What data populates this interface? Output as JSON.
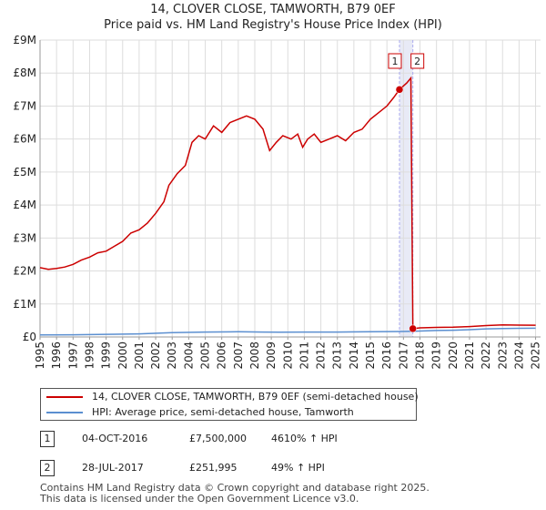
{
  "title_line1": "14, CLOVER CLOSE, TAMWORTH, B79 0EF",
  "title_line2": "Price paid vs. HM Land Registry's House Price Index (HPI)",
  "chart_data": {
    "type": "line",
    "title": "14, CLOVER CLOSE, TAMWORTH, B79 0EF — Price paid vs. HM Land Registry's House Price Index (HPI)",
    "xlabel": "",
    "ylabel": "",
    "xlim": [
      1995,
      2025.3
    ],
    "ylim": [
      0,
      9000000
    ],
    "x_ticks": [
      "1995",
      "1996",
      "1997",
      "1998",
      "1999",
      "2000",
      "2001",
      "2002",
      "2003",
      "2004",
      "2005",
      "2006",
      "2007",
      "2008",
      "2009",
      "2010",
      "2011",
      "2012",
      "2013",
      "2014",
      "2015",
      "2016",
      "2017",
      "2018",
      "2019",
      "2020",
      "2021",
      "2022",
      "2023",
      "2024",
      "2025"
    ],
    "y_ticks": [
      {
        "value": 0,
        "label": "£0"
      },
      {
        "value": 1000000,
        "label": "£1M"
      },
      {
        "value": 2000000,
        "label": "£2M"
      },
      {
        "value": 3000000,
        "label": "£3M"
      },
      {
        "value": 4000000,
        "label": "£4M"
      },
      {
        "value": 5000000,
        "label": "£5M"
      },
      {
        "value": 6000000,
        "label": "£6M"
      },
      {
        "value": 7000000,
        "label": "£7M"
      },
      {
        "value": 8000000,
        "label": "£8M"
      },
      {
        "value": 9000000,
        "label": "£9M"
      }
    ],
    "grid": true,
    "colors": {
      "property": "#cc0000",
      "hpi": "#5b8fd0",
      "marker_line": "#aaaaee",
      "highlight_band": "#e8eaf6"
    },
    "series": [
      {
        "name": "14, CLOVER CLOSE, TAMWORTH, B79 0EF (semi-detached house)",
        "color": "#cc0000",
        "points": [
          [
            1995.0,
            2100000
          ],
          [
            1995.5,
            2050000
          ],
          [
            1996.0,
            2080000
          ],
          [
            1996.5,
            2120000
          ],
          [
            1997.0,
            2200000
          ],
          [
            1997.5,
            2330000
          ],
          [
            1998.0,
            2420000
          ],
          [
            1998.5,
            2550000
          ],
          [
            1999.0,
            2600000
          ],
          [
            1999.5,
            2750000
          ],
          [
            2000.0,
            2900000
          ],
          [
            2000.5,
            3150000
          ],
          [
            2001.0,
            3250000
          ],
          [
            2001.5,
            3450000
          ],
          [
            2002.0,
            3750000
          ],
          [
            2002.5,
            4100000
          ],
          [
            2002.8,
            4600000
          ],
          [
            2003.3,
            4950000
          ],
          [
            2003.8,
            5200000
          ],
          [
            2004.2,
            5900000
          ],
          [
            2004.6,
            6100000
          ],
          [
            2005.0,
            6000000
          ],
          [
            2005.5,
            6400000
          ],
          [
            2006.0,
            6200000
          ],
          [
            2006.5,
            6500000
          ],
          [
            2007.0,
            6600000
          ],
          [
            2007.5,
            6700000
          ],
          [
            2008.0,
            6600000
          ],
          [
            2008.5,
            6300000
          ],
          [
            2008.9,
            5650000
          ],
          [
            2009.3,
            5900000
          ],
          [
            2009.7,
            6100000
          ],
          [
            2010.2,
            6000000
          ],
          [
            2010.6,
            6150000
          ],
          [
            2010.9,
            5750000
          ],
          [
            2011.2,
            6000000
          ],
          [
            2011.6,
            6150000
          ],
          [
            2012.0,
            5900000
          ],
          [
            2012.5,
            6000000
          ],
          [
            2013.0,
            6100000
          ],
          [
            2013.5,
            5950000
          ],
          [
            2014.0,
            6200000
          ],
          [
            2014.5,
            6300000
          ],
          [
            2015.0,
            6600000
          ],
          [
            2015.5,
            6800000
          ],
          [
            2016.0,
            7000000
          ],
          [
            2016.4,
            7250000
          ],
          [
            2016.76,
            7500000
          ],
          [
            2017.2,
            7700000
          ],
          [
            2017.45,
            7850000
          ],
          [
            2017.57,
            251995
          ],
          [
            2018.0,
            275000
          ],
          [
            2019.0,
            290000
          ],
          [
            2020.0,
            295000
          ],
          [
            2021.0,
            315000
          ],
          [
            2022.0,
            345000
          ],
          [
            2023.0,
            365000
          ],
          [
            2024.0,
            360000
          ],
          [
            2025.0,
            355000
          ]
        ]
      },
      {
        "name": "HPI: Average price, semi-detached house, Tamworth",
        "color": "#5b8fd0",
        "points": [
          [
            1995.0,
            60000
          ],
          [
            1997.0,
            65000
          ],
          [
            1999.0,
            80000
          ],
          [
            2001.0,
            95000
          ],
          [
            2003.0,
            130000
          ],
          [
            2005.0,
            150000
          ],
          [
            2007.0,
            158000
          ],
          [
            2008.5,
            150000
          ],
          [
            2009.5,
            145000
          ],
          [
            2011.0,
            148000
          ],
          [
            2013.0,
            150000
          ],
          [
            2015.0,
            158000
          ],
          [
            2016.76,
            165000
          ],
          [
            2017.57,
            175000
          ],
          [
            2019.0,
            195000
          ],
          [
            2020.0,
            205000
          ],
          [
            2021.0,
            220000
          ],
          [
            2022.0,
            245000
          ],
          [
            2023.0,
            258000
          ],
          [
            2024.0,
            262000
          ],
          [
            2025.0,
            265000
          ]
        ]
      }
    ],
    "annotations": [
      {
        "label": "1",
        "x": 2016.76,
        "y": 7500000
      },
      {
        "label": "2",
        "x": 2017.57,
        "y": 251995
      }
    ]
  },
  "legend": {
    "items": [
      {
        "label": "14, CLOVER CLOSE, TAMWORTH, B79 0EF (semi-detached house)",
        "color": "#cc0000"
      },
      {
        "label": "HPI: Average price, semi-detached house, Tamworth",
        "color": "#5b8fd0"
      }
    ]
  },
  "transactions": [
    {
      "num": "1",
      "date": "04-OCT-2016",
      "price": "£7,500,000",
      "pct": "4610% ↑ HPI"
    },
    {
      "num": "2",
      "date": "28-JUL-2017",
      "price": "£251,995",
      "pct": "49% ↑ HPI"
    }
  ],
  "footer": {
    "line1": "Contains HM Land Registry data © Crown copyright and database right 2025.",
    "line2": "This data is licensed under the Open Government Licence v3.0."
  }
}
